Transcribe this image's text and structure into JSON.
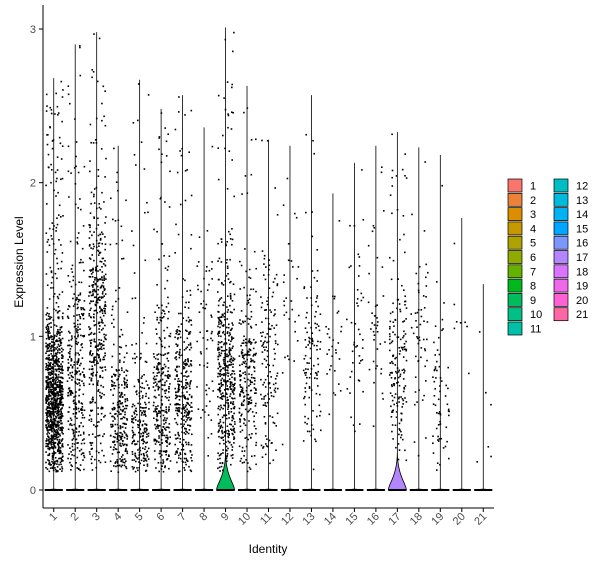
{
  "chart_data": {
    "type": "violin",
    "xlabel": "Identity",
    "ylabel": "Expression Level",
    "ylim": [
      -0.1,
      3.05
    ],
    "y_ticks": [
      0,
      1,
      2,
      3
    ],
    "categories": [
      "1",
      "2",
      "3",
      "4",
      "5",
      "6",
      "7",
      "8",
      "9",
      "10",
      "11",
      "12",
      "13",
      "14",
      "15",
      "16",
      "17",
      "18",
      "19",
      "20",
      "21"
    ],
    "legend_title": "",
    "legend_position": "right",
    "legend_columns": 2,
    "series": [
      {
        "name": "1",
        "color": "#F8766D",
        "max": 2.68,
        "points": 1000,
        "center": 0.62,
        "spread": 0.55,
        "violin_peak": 0
      },
      {
        "name": "2",
        "color": "#EC8239",
        "max": 2.9,
        "points": 320,
        "center": 0.75,
        "spread": 0.75,
        "violin_peak": 0
      },
      {
        "name": "3",
        "color": "#DB8E00",
        "max": 2.98,
        "points": 420,
        "center": 1.1,
        "spread": 0.85,
        "violin_peak": 0
      },
      {
        "name": "4",
        "color": "#C79800",
        "max": 2.24,
        "points": 260,
        "center": 0.45,
        "spread": 0.5,
        "violin_peak": 0
      },
      {
        "name": "5",
        "color": "#AEA200",
        "max": 2.67,
        "points": 210,
        "center": 0.4,
        "spread": 0.55,
        "violin_peak": 0
      },
      {
        "name": "6",
        "color": "#8FAA00",
        "max": 2.48,
        "points": 300,
        "center": 0.55,
        "spread": 0.6,
        "violin_peak": 0
      },
      {
        "name": "7",
        "color": "#64B200",
        "max": 2.57,
        "points": 320,
        "center": 0.6,
        "spread": 0.55,
        "violin_peak": 0
      },
      {
        "name": "8",
        "color": "#00B81B",
        "max": 2.36,
        "points": 60,
        "center": 0.9,
        "spread": 0.7,
        "violin_peak": 0
      },
      {
        "name": "9",
        "color": "#00BD5C",
        "max": 3.01,
        "points": 460,
        "center": 0.75,
        "spread": 0.65,
        "violin_peak": 0.1
      },
      {
        "name": "10",
        "color": "#00C085",
        "max": 2.63,
        "points": 240,
        "center": 0.7,
        "spread": 0.6,
        "violin_peak": 0
      },
      {
        "name": "11",
        "color": "#00C1A7",
        "max": 2.28,
        "points": 140,
        "center": 0.8,
        "spread": 0.65,
        "violin_peak": 0
      },
      {
        "name": "12",
        "color": "#00BFC4",
        "max": 2.24,
        "points": 30,
        "center": 1.2,
        "spread": 0.6,
        "violin_peak": 0
      },
      {
        "name": "13",
        "color": "#00BADE",
        "max": 2.57,
        "points": 110,
        "center": 0.8,
        "spread": 0.6,
        "violin_peak": 0
      },
      {
        "name": "14",
        "color": "#00B2F3",
        "max": 1.93,
        "points": 30,
        "center": 0.9,
        "spread": 0.5,
        "violin_peak": 0
      },
      {
        "name": "15",
        "color": "#00A6FF",
        "max": 2.13,
        "points": 45,
        "center": 1.0,
        "spread": 0.55,
        "violin_peak": 0
      },
      {
        "name": "16",
        "color": "#7C96FF",
        "max": 2.24,
        "points": 40,
        "center": 1.1,
        "spread": 0.6,
        "violin_peak": 0
      },
      {
        "name": "17",
        "color": "#B385FF",
        "max": 2.33,
        "points": 170,
        "center": 0.8,
        "spread": 0.6,
        "violin_peak": 0.1
      },
      {
        "name": "18",
        "color": "#D874FD",
        "max": 2.23,
        "points": 55,
        "center": 1.0,
        "spread": 0.6,
        "violin_peak": 0
      },
      {
        "name": "19",
        "color": "#EF67EB",
        "max": 2.18,
        "points": 65,
        "center": 0.6,
        "spread": 0.5,
        "violin_peak": 0
      },
      {
        "name": "20",
        "color": "#FD61D3",
        "max": 1.77,
        "points": 8,
        "center": 0.9,
        "spread": 0.5,
        "violin_peak": 0
      },
      {
        "name": "21",
        "color": "#FF67A4",
        "max": 1.34,
        "points": 6,
        "center": 0.7,
        "spread": 0.4,
        "violin_peak": 0
      }
    ]
  }
}
